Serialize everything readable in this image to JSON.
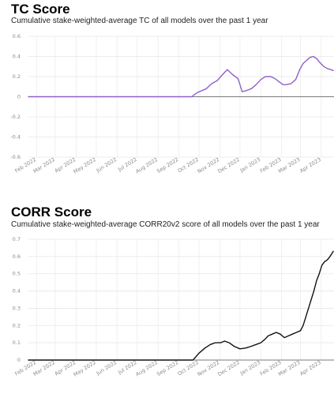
{
  "charts": [
    {
      "title": "TC Score",
      "subtitle": "Cumulative stake-weighted-average TC of all models over the past 1 year"
    },
    {
      "title": "CORR Score",
      "subtitle": "Cumulative stake-weighted-average CORR20v2 score of all models over the past 1 year"
    }
  ],
  "chart_data": [
    {
      "type": "line",
      "title": "TC Score",
      "subtitle": "Cumulative stake-weighted-average TC of all models over the past 1 year",
      "xlabel": "",
      "ylabel": "",
      "color": "#9060c8",
      "ylim": [
        -0.6,
        0.6
      ],
      "yticks": [
        "0.6",
        "0.4",
        "0.2",
        "0",
        "-0.2",
        "-0.4",
        "-0.6"
      ],
      "xticks": [
        "Feb 2022",
        "Mar 2022",
        "Apr 2022",
        "May 2022",
        "Jun 2022",
        "Jul 2022",
        "Aug 2022",
        "Sep 2022",
        "Oct 2022",
        "Nov 2022",
        "Dec 2022",
        "Jan 2023",
        "Feb 2023",
        "Mar 2023",
        "Apr 2023"
      ],
      "grid": true,
      "zero_line": true,
      "series": [
        {
          "x": [
            "2022-01-20",
            "2022-09-20",
            "2022-09-28",
            "2022-10-05",
            "2022-10-12",
            "2022-10-20",
            "2022-10-28",
            "2022-11-05",
            "2022-11-12",
            "2022-11-20",
            "2022-11-28",
            "2022-12-01",
            "2022-12-04",
            "2022-12-10",
            "2022-12-18",
            "2022-12-25",
            "2023-01-01",
            "2023-01-08",
            "2023-01-16",
            "2023-01-22",
            "2023-01-28",
            "2023-02-03",
            "2023-02-08",
            "2023-02-15",
            "2023-02-22",
            "2023-02-28",
            "2023-03-05",
            "2023-03-10",
            "2023-03-15",
            "2023-03-20",
            "2023-03-25",
            "2023-03-30",
            "2023-04-05",
            "2023-04-10",
            "2023-04-15",
            "2023-04-19"
          ],
          "y": [
            0,
            0,
            0.04,
            0.06,
            0.08,
            0.13,
            0.16,
            0.22,
            0.27,
            0.22,
            0.18,
            0.12,
            0.05,
            0.06,
            0.08,
            0.12,
            0.17,
            0.2,
            0.2,
            0.18,
            0.15,
            0.12,
            0.12,
            0.13,
            0.17,
            0.27,
            0.33,
            0.36,
            0.39,
            0.4,
            0.38,
            0.34,
            0.3,
            0.28,
            0.27,
            0.26
          ]
        }
      ]
    },
    {
      "type": "line",
      "title": "CORR Score",
      "subtitle": "Cumulative stake-weighted-average CORR20v2 score of all models over the past 1 year",
      "xlabel": "",
      "ylabel": "",
      "color": "#111111",
      "ylim": [
        0,
        0.7
      ],
      "yticks": [
        "0.7",
        "0.6",
        "0.5",
        "0.4",
        "0.3",
        "0.2",
        "0.1",
        "0"
      ],
      "xticks": [
        "Feb 2022",
        "Mar 2022",
        "Apr 2022",
        "May 2022",
        "Jun 2022",
        "Jul 2022",
        "Aug 2022",
        "Sep 2022",
        "Oct 2022",
        "Nov 2022",
        "Dec 2022",
        "Jan 2023",
        "Feb 2023",
        "Mar 2023",
        "Apr 2023"
      ],
      "grid": true,
      "zero_line": true,
      "series": [
        {
          "x": [
            "2022-01-20",
            "2022-09-22",
            "2022-10-01",
            "2022-10-10",
            "2022-10-18",
            "2022-10-25",
            "2022-11-02",
            "2022-11-08",
            "2022-11-15",
            "2022-11-22",
            "2022-12-01",
            "2022-12-10",
            "2022-12-18",
            "2022-12-25",
            "2023-01-01",
            "2023-01-07",
            "2023-01-12",
            "2023-01-18",
            "2023-01-24",
            "2023-01-30",
            "2023-02-05",
            "2023-02-11",
            "2023-02-17",
            "2023-02-23",
            "2023-03-01",
            "2023-03-05",
            "2023-03-09",
            "2023-03-13",
            "2023-03-17",
            "2023-03-21",
            "2023-03-25",
            "2023-03-29",
            "2023-04-02",
            "2023-04-06",
            "2023-04-10",
            "2023-04-14",
            "2023-04-19"
          ],
          "y": [
            0,
            0,
            0.04,
            0.07,
            0.09,
            0.1,
            0.1,
            0.11,
            0.1,
            0.08,
            0.065,
            0.07,
            0.08,
            0.09,
            0.1,
            0.12,
            0.14,
            0.15,
            0.16,
            0.15,
            0.13,
            0.14,
            0.15,
            0.16,
            0.17,
            0.2,
            0.25,
            0.3,
            0.35,
            0.4,
            0.46,
            0.5,
            0.55,
            0.57,
            0.58,
            0.6,
            0.63
          ]
        }
      ]
    }
  ]
}
